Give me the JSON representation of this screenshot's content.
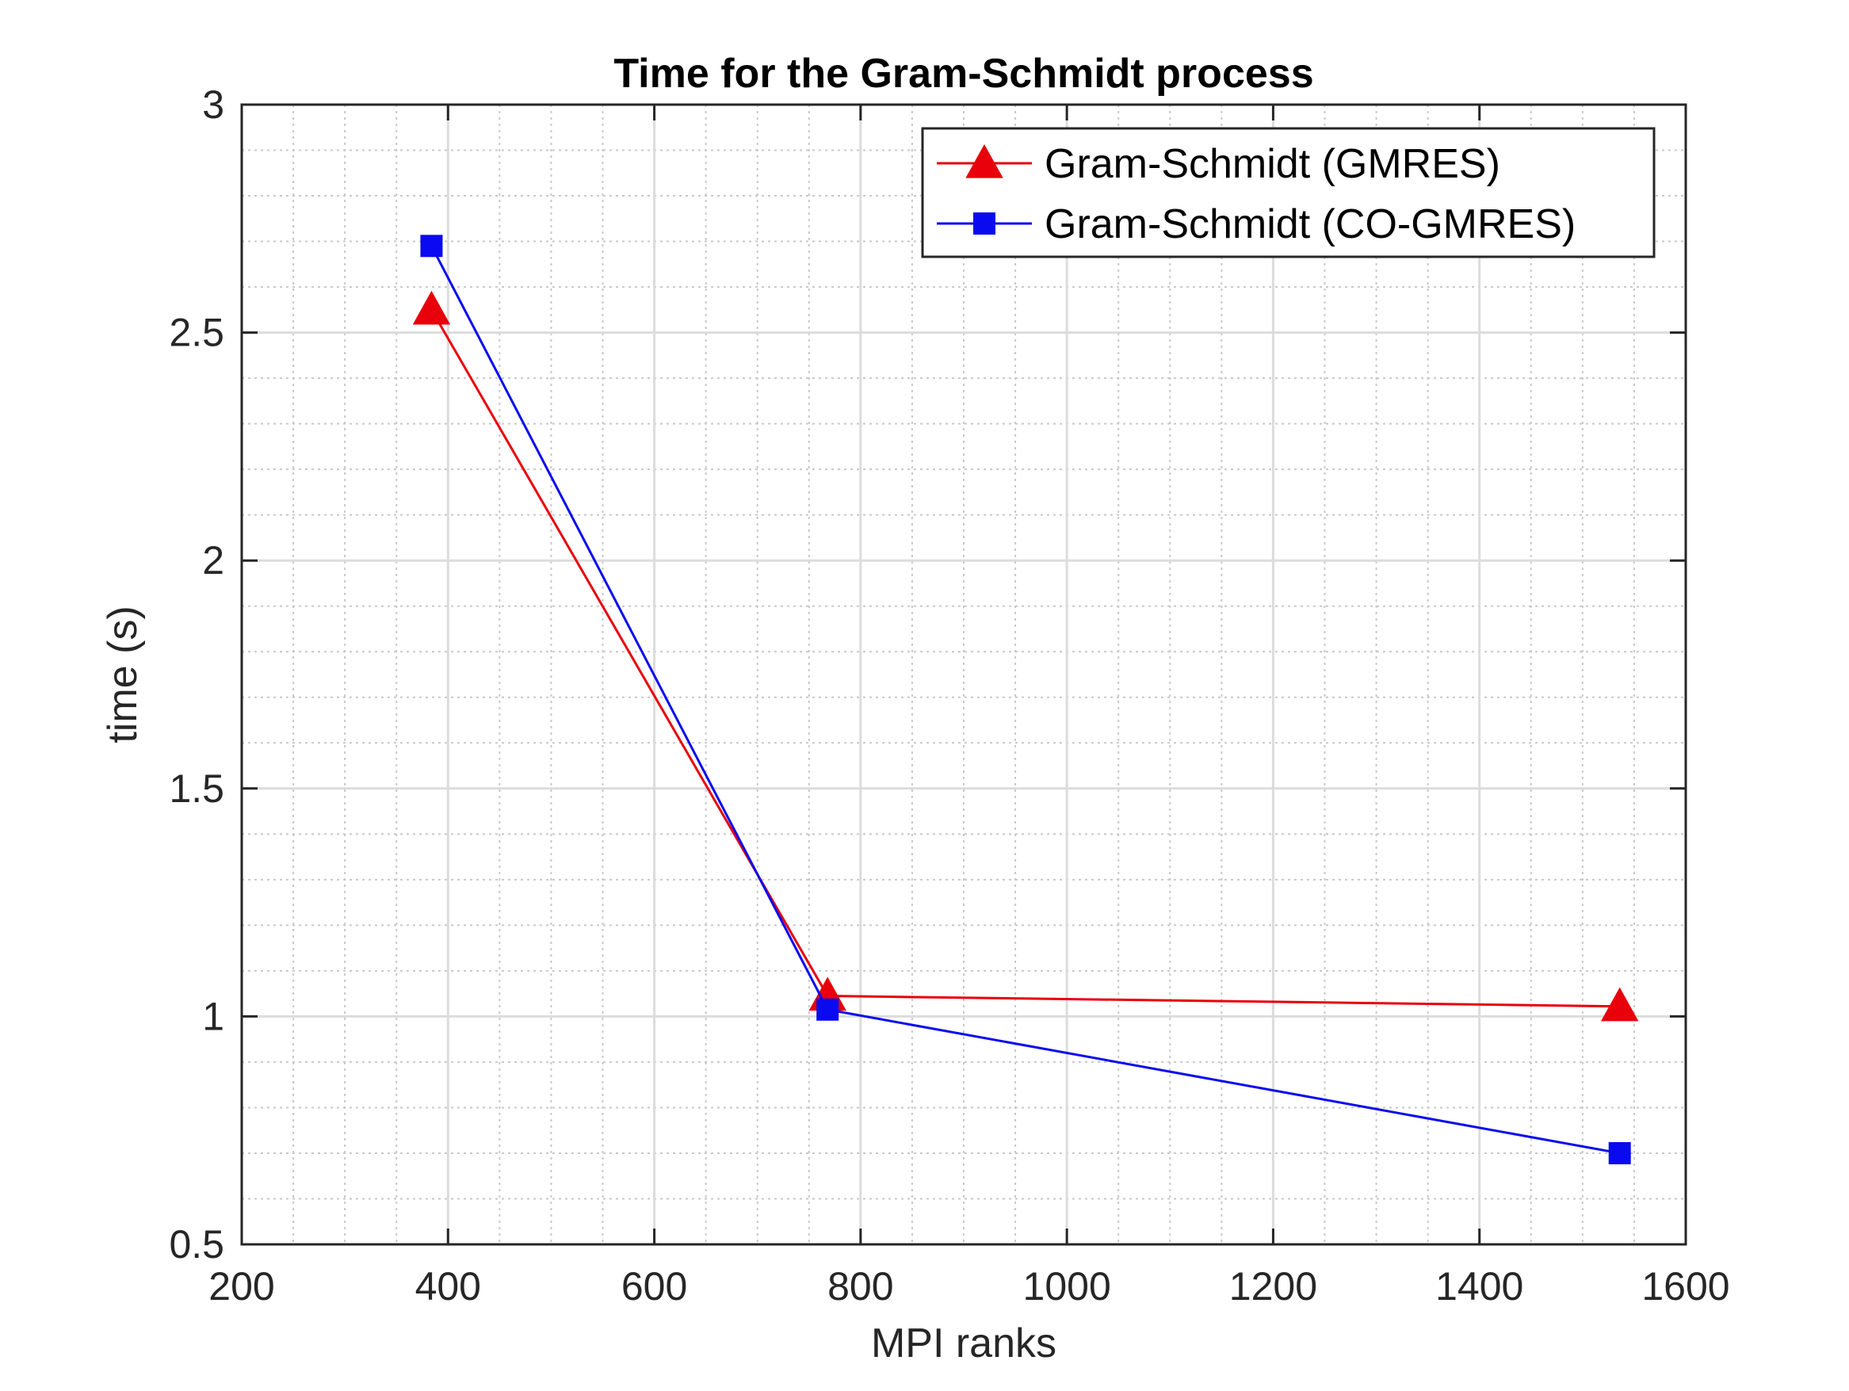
{
  "chart_data": {
    "type": "line",
    "title": "Time for the Gram-Schmidt process",
    "xlabel": "MPI ranks",
    "ylabel": "time (s)",
    "xlim": [
      200,
      1600
    ],
    "ylim": [
      0.5,
      3
    ],
    "xticks": [
      200,
      400,
      600,
      800,
      1000,
      1200,
      1400,
      1600
    ],
    "xtick_labels": [
      "200",
      "400",
      "600",
      "800",
      "1000",
      "1200",
      "1400",
      "1600"
    ],
    "yticks": [
      0.5,
      1,
      1.5,
      2,
      2.5,
      3
    ],
    "ytick_labels": [
      "0.5",
      "1",
      "1.5",
      "2",
      "2.5",
      "3"
    ],
    "grid": "major and minor",
    "legend_location": "top-right",
    "series": [
      {
        "name": "Gram-Schmidt (GMRES)",
        "color": "#e8000b",
        "marker": "triangle",
        "x": [
          384,
          768,
          1536
        ],
        "y": [
          2.55,
          1.045,
          1.022
        ]
      },
      {
        "name": "Gram-Schmidt (CO-GMRES)",
        "color": "#0a0af0",
        "marker": "square",
        "x": [
          384,
          768,
          1536
        ],
        "y": [
          2.69,
          1.015,
          0.7
        ]
      }
    ]
  }
}
